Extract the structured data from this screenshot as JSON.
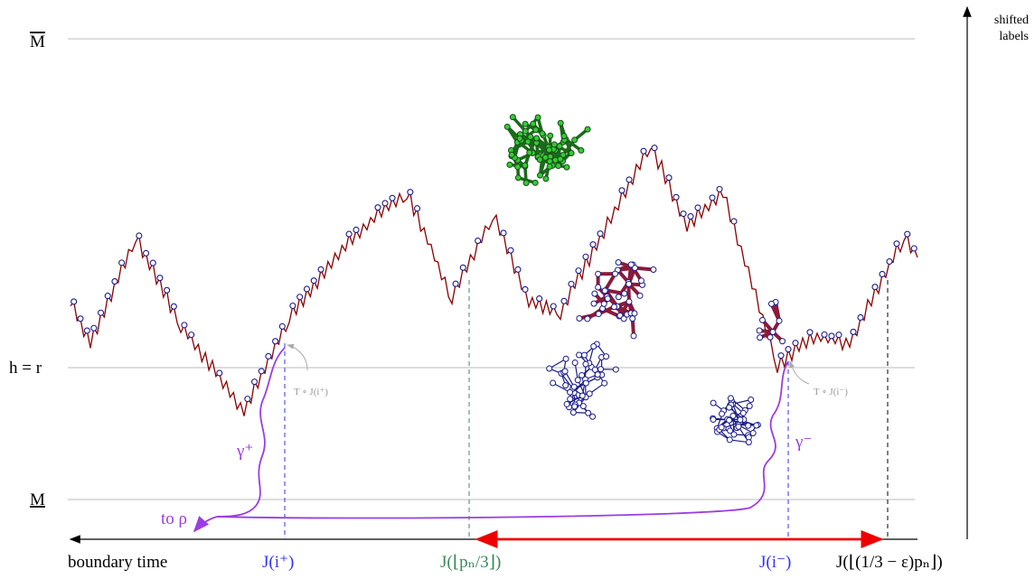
{
  "labels": {
    "m_bar": "M",
    "h_eq_r": "h = r",
    "m_under": "M",
    "shifted": [
      "shifted",
      "labels"
    ],
    "boundary_time": "boundary time",
    "j_i_plus": "J(i⁺)",
    "j_pn3": "J(⌊pₙ/3⌋)",
    "j_i_minus": "J(i⁻)",
    "j_eps": "J(⌊(1/3 − ε)pₙ⌋)",
    "gamma_plus": "γ⁺",
    "gamma_minus": "γ⁻",
    "to_rho": "to ρ",
    "t_j_plus": "T ∘ J(i⁺)",
    "t_j_minus": "T ∘ J(i⁻)"
  }
}
